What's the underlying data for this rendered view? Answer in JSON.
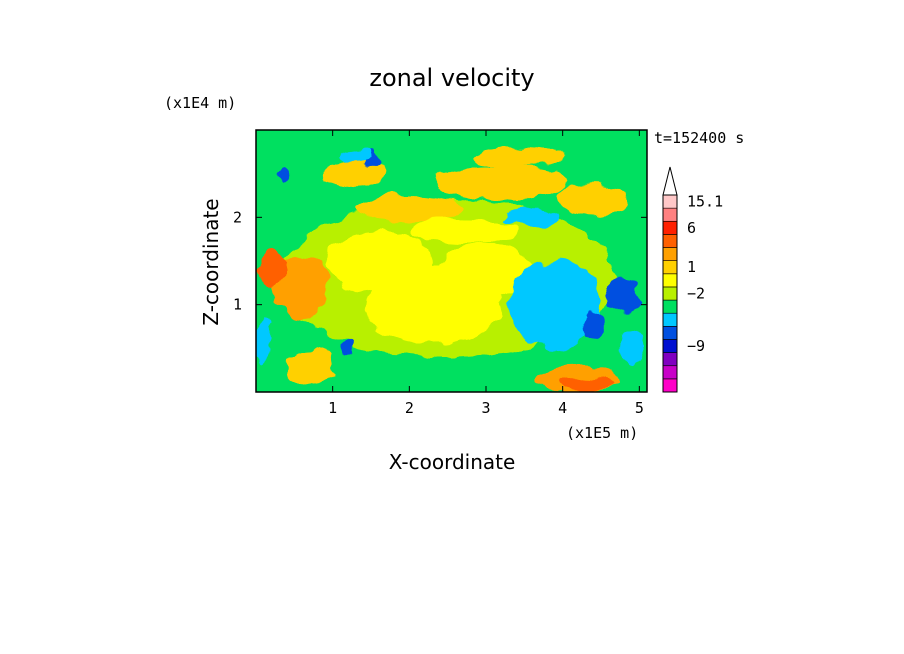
{
  "chart_data": {
    "type": "heatmap",
    "title": "zonal velocity",
    "xlabel": "X-coordinate",
    "ylabel": "Z-coordinate",
    "x_multiplier": "(x1E5 m)",
    "y_multiplier": "(x1E4 m)",
    "time_label": "t=152400 s",
    "xlim": [
      0,
      5.1
    ],
    "ylim": [
      0,
      3.0
    ],
    "x_ticks": [
      {
        "value": 1,
        "label": "1"
      },
      {
        "value": 2,
        "label": "2"
      },
      {
        "value": 3,
        "label": "3"
      },
      {
        "value": 4,
        "label": "4"
      },
      {
        "value": 5,
        "label": "5"
      }
    ],
    "y_ticks": [
      {
        "value": 1,
        "label": "1"
      },
      {
        "value": 2,
        "label": "2"
      }
    ],
    "colorbar": {
      "colors": [
        "#ff00c8",
        "#c800c8",
        "#8000c0",
        "#0010d0",
        "#0050e0",
        "#00c8ff",
        "#00e060",
        "#b8f000",
        "#ffff00",
        "#ffd000",
        "#ffa000",
        "#ff6000",
        "#ff2000",
        "#ff8080",
        "#ffc8c8"
      ],
      "labels": [
        {
          "index": 14,
          "label": "15.1"
        },
        {
          "index": 12,
          "label": "6"
        },
        {
          "index": 9,
          "label": "1"
        },
        {
          "index": 7,
          "label": "−2"
        },
        {
          "index": 3,
          "label": "−9"
        }
      ],
      "extend_top": true
    },
    "field_blobs": [
      {
        "x": 2.5,
        "z": 1.3,
        "rx": 2.2,
        "rz": 0.9,
        "level": 7
      },
      {
        "x": 2.3,
        "z": 1.0,
        "rx": 0.9,
        "rz": 0.45,
        "level": 8
      },
      {
        "x": 1.6,
        "z": 1.5,
        "rx": 0.7,
        "rz": 0.35,
        "level": 8
      },
      {
        "x": 3.0,
        "z": 1.4,
        "rx": 0.6,
        "rz": 0.3,
        "level": 8
      },
      {
        "x": 2.0,
        "z": 2.1,
        "rx": 0.7,
        "rz": 0.15,
        "level": 9
      },
      {
        "x": 3.2,
        "z": 2.4,
        "rx": 0.9,
        "rz": 0.2,
        "level": 9
      },
      {
        "x": 1.3,
        "z": 2.5,
        "rx": 0.4,
        "rz": 0.15,
        "level": 9
      },
      {
        "x": 3.4,
        "z": 2.7,
        "rx": 0.6,
        "rz": 0.12,
        "level": 9
      },
      {
        "x": 4.4,
        "z": 2.2,
        "rx": 0.45,
        "rz": 0.18,
        "level": 9
      },
      {
        "x": 0.6,
        "z": 1.2,
        "rx": 0.35,
        "rz": 0.35,
        "level": 10
      },
      {
        "x": 0.2,
        "z": 1.4,
        "rx": 0.2,
        "rz": 0.2,
        "level": 11
      },
      {
        "x": 2.7,
        "z": 1.85,
        "rx": 0.7,
        "rz": 0.15,
        "level": 8
      },
      {
        "x": 4.2,
        "z": 0.15,
        "rx": 0.55,
        "rz": 0.15,
        "level": 10
      },
      {
        "x": 4.3,
        "z": 0.1,
        "rx": 0.35,
        "rz": 0.08,
        "level": 11
      },
      {
        "x": 3.9,
        "z": 1.0,
        "rx": 0.6,
        "rz": 0.5,
        "level": 5
      },
      {
        "x": 3.6,
        "z": 2.0,
        "rx": 0.35,
        "rz": 0.1,
        "level": 5
      },
      {
        "x": 4.8,
        "z": 1.1,
        "rx": 0.2,
        "rz": 0.2,
        "level": 4
      },
      {
        "x": 4.4,
        "z": 0.75,
        "rx": 0.15,
        "rz": 0.15,
        "level": 4
      },
      {
        "x": 4.9,
        "z": 0.5,
        "rx": 0.15,
        "rz": 0.2,
        "level": 5
      },
      {
        "x": 1.5,
        "z": 2.65,
        "rx": 0.1,
        "rz": 0.08,
        "level": 4
      },
      {
        "x": 0.35,
        "z": 2.5,
        "rx": 0.08,
        "rz": 0.1,
        "level": 4
      },
      {
        "x": 1.2,
        "z": 0.5,
        "rx": 0.1,
        "rz": 0.08,
        "level": 4
      },
      {
        "x": 0.1,
        "z": 0.6,
        "rx": 0.08,
        "rz": 0.25,
        "level": 5
      },
      {
        "x": 1.3,
        "z": 2.7,
        "rx": 0.2,
        "rz": 0.07,
        "level": 5
      },
      {
        "x": 0.7,
        "z": 0.3,
        "rx": 0.3,
        "rz": 0.2,
        "level": 9
      }
    ]
  }
}
